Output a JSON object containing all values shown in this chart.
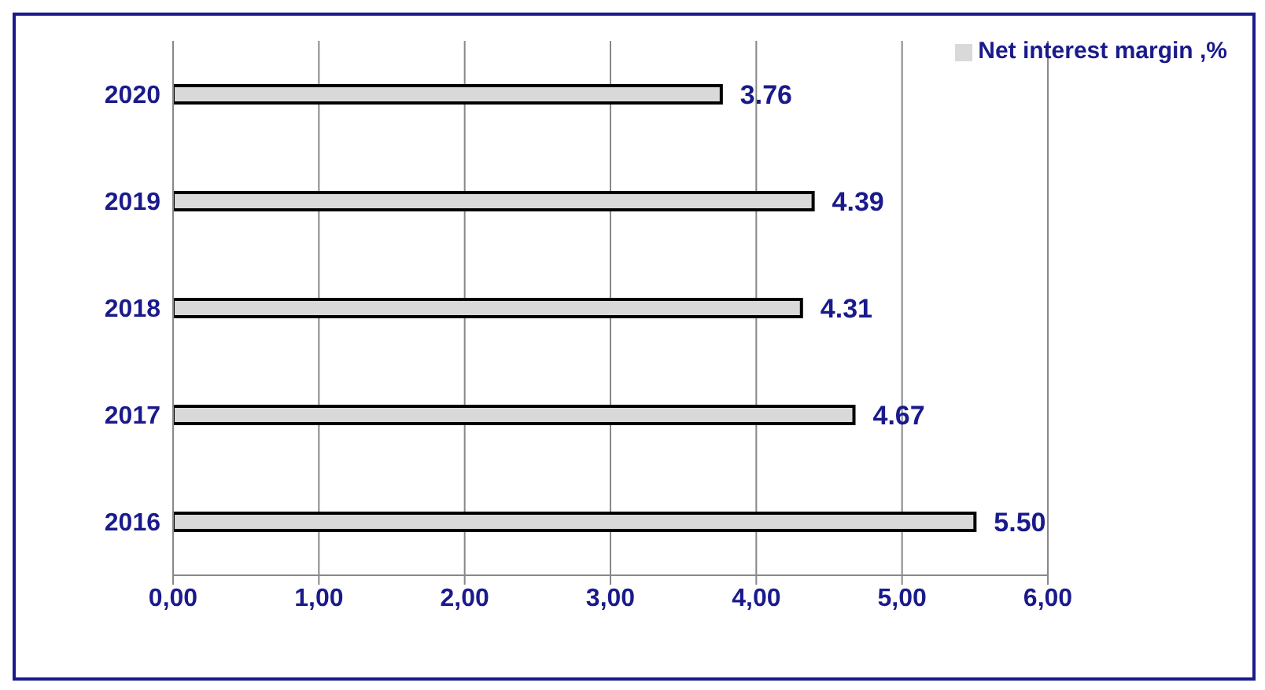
{
  "chart_data": {
    "type": "bar",
    "orientation": "horizontal",
    "categories": [
      "2020",
      "2019",
      "2018",
      "2017",
      "2016"
    ],
    "series": [
      {
        "name": "Net interest margin ,%",
        "color": "#d9d9d9",
        "values": [
          3.76,
          4.39,
          4.31,
          4.67,
          5.5
        ],
        "value_labels": [
          "3.76",
          "4.39",
          "4.31",
          "4.67",
          "5.50"
        ]
      }
    ],
    "xlim": [
      0,
      6
    ],
    "xticks": [
      {
        "value": 0,
        "label": "0,00"
      },
      {
        "value": 1,
        "label": "1,00"
      },
      {
        "value": 2,
        "label": "2,00"
      },
      {
        "value": 3,
        "label": "3,00"
      },
      {
        "value": 4,
        "label": "4,00"
      },
      {
        "value": 5,
        "label": "5,00"
      },
      {
        "value": 6,
        "label": "6,00"
      }
    ],
    "grid": "x",
    "legend": "top right"
  }
}
